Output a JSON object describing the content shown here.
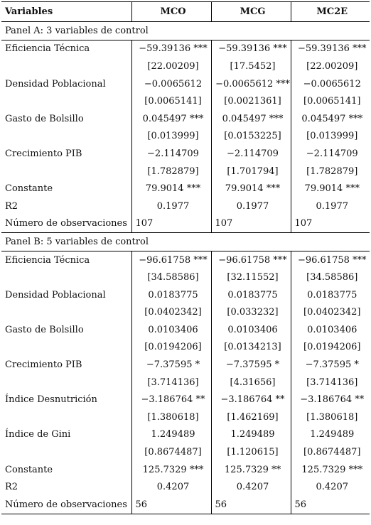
{
  "header": {
    "variables": "Variables",
    "col1": "MCO",
    "col2": "MCG",
    "col3": "MC2E"
  },
  "panelA": {
    "title": "Panel A: 3 variables de control",
    "rows": [
      {
        "label": "Eficiencia Técnica",
        "v": [
          "−59.39136 ***",
          "−59.39136 ***",
          "−59.39136 ***"
        ]
      },
      {
        "label": "",
        "v": [
          "[22.00209]",
          "[17.5452]",
          "[22.00209]"
        ]
      },
      {
        "label": "Densidad Poblacional",
        "v": [
          "−0.0065612",
          "−0.0065612 ***",
          "−0.0065612"
        ]
      },
      {
        "label": "",
        "v": [
          "[0.0065141]",
          "[0.0021361]",
          "[0.0065141]"
        ]
      },
      {
        "label": "Gasto de Bolsillo",
        "v": [
          "0.045497 ***",
          "0.045497 ***",
          "0.045497 ***"
        ]
      },
      {
        "label": "",
        "v": [
          "[0.013999]",
          "[0.0153225]",
          "[0.013999]"
        ]
      },
      {
        "label": "Crecimiento PIB",
        "v": [
          "−2.114709",
          "−2.114709",
          "−2.114709"
        ]
      },
      {
        "label": "",
        "v": [
          "[1.782879]",
          "[1.701794]",
          "[1.782879]"
        ]
      },
      {
        "label": "Constante",
        "v": [
          "79.9014 ***",
          "79.9014 ***",
          "79.9014 ***"
        ]
      },
      {
        "label": "R2",
        "v": [
          "0.1977",
          "0.1977",
          "0.1977"
        ]
      }
    ],
    "obs": {
      "label": "Número de observaciones",
      "v": [
        "107",
        "107",
        "107"
      ]
    }
  },
  "panelB": {
    "title": "Panel B: 5 variables de control",
    "rows": [
      {
        "label": "Eficiencia Técnica",
        "v": [
          "−96.61758 ***",
          "−96.61758 ***",
          "−96.61758 ***"
        ]
      },
      {
        "label": "",
        "v": [
          "[34.58586]",
          "[32.11552]",
          "[34.58586]"
        ]
      },
      {
        "label": "Densidad Poblacional",
        "v": [
          "0.0183775",
          "0.0183775",
          "0.0183775"
        ]
      },
      {
        "label": "",
        "v": [
          "[0.0402342]",
          "[0.033232]",
          "[0.0402342]"
        ]
      },
      {
        "label": "Gasto de Bolsillo",
        "v": [
          "0.0103406",
          "0.0103406",
          "0.0103406"
        ]
      },
      {
        "label": "",
        "v": [
          "[0.0194206]",
          "[0.0134213]",
          "[0.0194206]"
        ]
      },
      {
        "label": "Crecimiento PIB",
        "v": [
          "−7.37595 *",
          "−7.37595 *",
          "−7.37595 *"
        ]
      },
      {
        "label": "",
        "v": [
          "[3.714136]",
          "[4.31656]",
          "[3.714136]"
        ]
      },
      {
        "label": "Índice Desnutrición",
        "v": [
          "−3.186764 **",
          "−3.186764 **",
          "−3.186764 **"
        ]
      },
      {
        "label": "",
        "v": [
          "[1.380618]",
          "[1.462169]",
          "[1.380618]"
        ]
      },
      {
        "label": "Índice de Gini",
        "v": [
          "1.249489",
          "1.249489",
          "1.249489"
        ]
      },
      {
        "label": "",
        "v": [
          "[0.8674487]",
          "[1.120615]",
          "[0.8674487]"
        ]
      },
      {
        "label": "Constante",
        "v": [
          "125.7329 ***",
          "125.7329 **",
          "125.7329 ***"
        ]
      },
      {
        "label": "R2",
        "v": [
          "0.4207",
          "0.4207",
          "0.4207"
        ]
      }
    ],
    "obs": {
      "label": "Número de observaciones",
      "v": [
        "56",
        "56",
        "56"
      ]
    }
  }
}
